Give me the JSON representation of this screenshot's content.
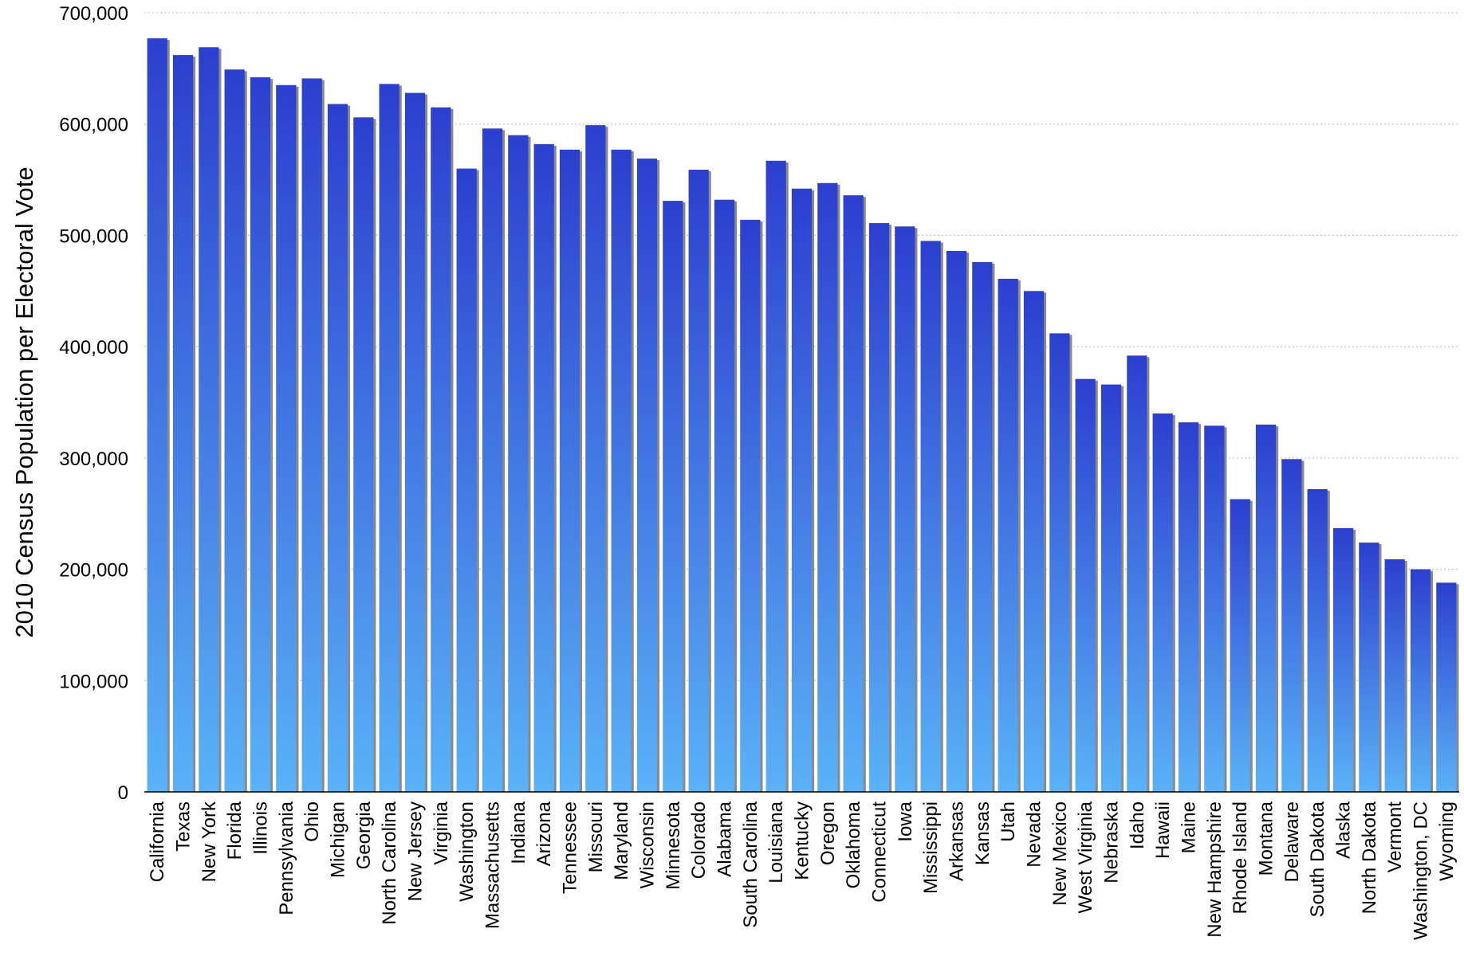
{
  "chart_data": {
    "type": "bar",
    "title": "",
    "xlabel": "",
    "ylabel": "2010 Census Population per Electoral Vote",
    "ylim": [
      0,
      700000
    ],
    "yticks": [
      0,
      100000,
      200000,
      300000,
      400000,
      500000,
      600000,
      700000
    ],
    "ytick_labels": [
      "0",
      "100,000",
      "200,000",
      "300,000",
      "400,000",
      "500,000",
      "600,000",
      "700,000"
    ],
    "grid": "horizontal dotted",
    "legend": "none",
    "colors": {
      "bar_top": "#2c3fcf",
      "bar_bottom": "#5ab2f7",
      "bar_shadow": "#8a8a8a",
      "grid": "#b9b9b9"
    },
    "categories": [
      "California",
      "Texas",
      "New York",
      "Florida",
      "Illinois",
      "Pennsylvania",
      "Ohio",
      "Michigan",
      "Georgia",
      "North Carolina",
      "New Jersey",
      "Virginia",
      "Washington",
      "Massachusetts",
      "Indiana",
      "Arizona",
      "Tennessee",
      "Missouri",
      "Maryland",
      "Wisconsin",
      "Minnesota",
      "Colorado",
      "Alabama",
      "South Carolina",
      "Louisiana",
      "Kentucky",
      "Oregon",
      "Oklahoma",
      "Connecticut",
      "Iowa",
      "Mississippi",
      "Arkansas",
      "Kansas",
      "Utah",
      "Nevada",
      "New Mexico",
      "West Virginia",
      "Nebraska",
      "Idaho",
      "Hawaii",
      "Maine",
      "New Hampshire",
      "Rhode Island",
      "Montana",
      "Delaware",
      "South Dakota",
      "Alaska",
      "North Dakota",
      "Vermont",
      "Washington, DC",
      "Wyoming"
    ],
    "values": [
      677000,
      662000,
      669000,
      649000,
      642000,
      635000,
      641000,
      618000,
      606000,
      636000,
      628000,
      615000,
      560000,
      596000,
      590000,
      582000,
      577000,
      599000,
      577000,
      569000,
      531000,
      559000,
      532000,
      514000,
      567000,
      542000,
      547000,
      536000,
      511000,
      508000,
      495000,
      486000,
      476000,
      461000,
      450000,
      412000,
      371000,
      366000,
      392000,
      340000,
      332000,
      329000,
      263000,
      330000,
      299000,
      272000,
      237000,
      224000,
      209000,
      200000,
      188000
    ]
  }
}
